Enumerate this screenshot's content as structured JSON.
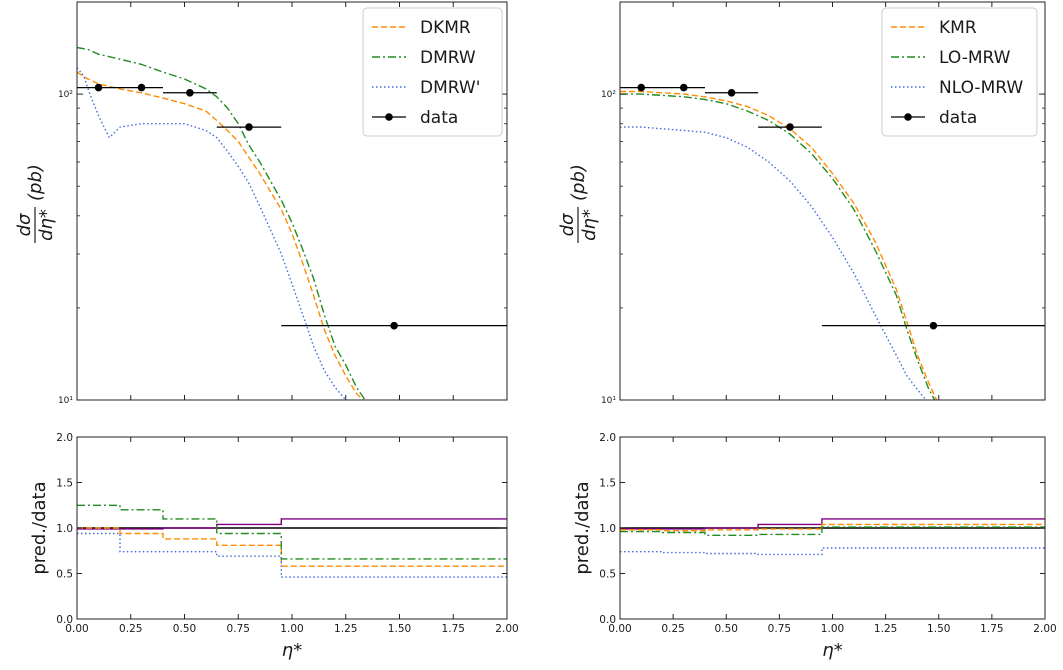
{
  "chart_data": [
    {
      "type": "line",
      "panel": "top-left",
      "xlabel": "η*",
      "ylabel_parts": {
        "numerator": "dσ",
        "denominator": "dη*",
        "unit": "(pb)"
      },
      "xlim": [
        0,
        2
      ],
      "ylim": [
        10,
        200
      ],
      "yscale": "log",
      "yticks": [
        10,
        100
      ],
      "ytick_labels": [
        "10¹",
        "10²"
      ],
      "grid": false,
      "legend_position": "top-right",
      "series": [
        {
          "name": "DKMR",
          "color": "#ff8c00",
          "style": "dashed",
          "x": [
            0.0,
            0.05,
            0.1,
            0.2,
            0.3,
            0.4,
            0.5,
            0.6,
            0.65,
            0.7,
            0.75,
            0.8,
            0.85,
            0.9,
            0.95,
            1.0,
            1.05,
            1.1,
            1.15,
            1.2,
            1.25,
            1.3,
            1.33
          ],
          "y": [
            118,
            112,
            108,
            104,
            101,
            97,
            93,
            88,
            82,
            76,
            70,
            62,
            55,
            48,
            42,
            35,
            28,
            22,
            17,
            14,
            12,
            10.5,
            10
          ]
        },
        {
          "name": "DMRW",
          "color": "#228b22",
          "style": "dashdot",
          "x": [
            0.0,
            0.05,
            0.1,
            0.2,
            0.3,
            0.4,
            0.5,
            0.6,
            0.65,
            0.7,
            0.75,
            0.8,
            0.85,
            0.9,
            0.95,
            1.0,
            1.05,
            1.1,
            1.15,
            1.2,
            1.25,
            1.3,
            1.34
          ],
          "y": [
            142,
            140,
            135,
            130,
            125,
            118,
            112,
            104,
            98,
            90,
            80,
            68,
            60,
            52,
            45,
            38,
            31,
            25,
            19,
            15,
            13,
            11,
            10
          ]
        },
        {
          "name": "DMRW'",
          "color": "#4169e1",
          "style": "dotted",
          "x": [
            0.0,
            0.03,
            0.06,
            0.1,
            0.15,
            0.2,
            0.3,
            0.4,
            0.5,
            0.6,
            0.65,
            0.7,
            0.75,
            0.8,
            0.85,
            0.9,
            0.95,
            1.0,
            1.05,
            1.1,
            1.15,
            1.2,
            1.25
          ],
          "y": [
            122,
            115,
            100,
            85,
            72,
            78,
            80,
            80,
            80,
            76,
            72,
            65,
            58,
            51,
            43,
            36,
            30,
            24,
            19,
            15,
            12.5,
            11,
            10
          ]
        }
      ],
      "data_points": {
        "name": "data",
        "x": [
          0.1,
          0.3,
          0.525,
          0.8,
          1.475
        ],
        "y": [
          105,
          105,
          101,
          78,
          17.5
        ],
        "xerr_low": [
          0.1,
          0.1,
          0.125,
          0.15,
          0.525
        ],
        "xerr_high": [
          0.1,
          0.1,
          0.125,
          0.15,
          0.525
        ]
      }
    },
    {
      "type": "line",
      "panel": "top-right",
      "xlabel": "η*",
      "ylabel_parts": {
        "numerator": "dσ",
        "denominator": "dη*",
        "unit": "(pb)"
      },
      "xlim": [
        0,
        2
      ],
      "ylim": [
        10,
        200
      ],
      "yscale": "log",
      "yticks": [
        10,
        100
      ],
      "ytick_labels": [
        "10¹",
        "10²"
      ],
      "grid": false,
      "legend_position": "top-right",
      "series": [
        {
          "name": "KMR",
          "color": "#ff8c00",
          "style": "dashed",
          "x": [
            0.0,
            0.1,
            0.2,
            0.3,
            0.4,
            0.5,
            0.6,
            0.7,
            0.8,
            0.9,
            1.0,
            1.1,
            1.2,
            1.3,
            1.35,
            1.4,
            1.45,
            1.49
          ],
          "y": [
            102,
            102,
            101,
            100,
            98,
            95,
            91,
            85,
            77,
            67,
            55,
            44,
            33,
            23,
            18,
            14,
            11.5,
            10
          ]
        },
        {
          "name": "LO-MRW",
          "color": "#228b22",
          "style": "dashdot",
          "x": [
            0.0,
            0.1,
            0.2,
            0.3,
            0.4,
            0.5,
            0.6,
            0.7,
            0.8,
            0.9,
            1.0,
            1.1,
            1.2,
            1.3,
            1.35,
            1.4,
            1.45,
            1.48
          ],
          "y": [
            100,
            100,
            99,
            98,
            96,
            93,
            88,
            82,
            74,
            64,
            53,
            42,
            31,
            22,
            17,
            13.5,
            11,
            10
          ]
        },
        {
          "name": "NLO-MRW",
          "color": "#4169e1",
          "style": "dotted",
          "x": [
            0.0,
            0.1,
            0.2,
            0.3,
            0.4,
            0.5,
            0.6,
            0.7,
            0.8,
            0.9,
            1.0,
            1.1,
            1.2,
            1.3,
            1.35,
            1.4,
            1.44
          ],
          "y": [
            78,
            78,
            77,
            76,
            75,
            72,
            67,
            60,
            52,
            43,
            34,
            26,
            19,
            14,
            12,
            10.8,
            10
          ]
        }
      ],
      "data_points": {
        "name": "data",
        "x": [
          0.1,
          0.3,
          0.525,
          0.8,
          1.475
        ],
        "y": [
          105,
          105,
          101,
          78,
          17.5
        ],
        "xerr_low": [
          0.1,
          0.1,
          0.125,
          0.15,
          0.525
        ],
        "xerr_high": [
          0.1,
          0.1,
          0.125,
          0.15,
          0.525
        ]
      }
    },
    {
      "type": "line",
      "panel": "bottom-left",
      "xlabel": "η*",
      "ylabel": "pred./data",
      "xlim": [
        0,
        2
      ],
      "ylim": [
        0,
        2
      ],
      "xticks": [
        0,
        0.25,
        0.5,
        0.75,
        1.0,
        1.25,
        1.5,
        1.75,
        2.0
      ],
      "xtick_labels": [
        "0.00",
        "0.25",
        "0.50",
        "0.75",
        "1.00",
        "1.25",
        "1.50",
        "1.75",
        "2.00"
      ],
      "yticks": [
        0,
        0.5,
        1.0,
        1.5,
        2.0
      ],
      "ytick_labels": [
        "0.0",
        "0.5",
        "1.0",
        "1.5",
        "2.0"
      ],
      "grid": false,
      "bin_edges": [
        0,
        0.2,
        0.4,
        0.65,
        0.95,
        2.0
      ],
      "series": [
        {
          "color": "#000000",
          "style": "solid",
          "values": [
            1.0,
            1.0,
            1.0,
            1.0,
            1.0
          ]
        },
        {
          "color": "#800080",
          "style": "solid",
          "values": [
            0.99,
            0.99,
            1.0,
            1.04,
            1.1
          ]
        },
        {
          "color": "#ff8c00",
          "style": "dashed",
          "values": [
            1.0,
            0.94,
            0.88,
            0.81,
            0.58
          ]
        },
        {
          "color": "#228b22",
          "style": "dashdot",
          "values": [
            1.25,
            1.2,
            1.1,
            0.94,
            0.66
          ]
        },
        {
          "color": "#4169e1",
          "style": "dotted",
          "values": [
            0.94,
            0.74,
            0.74,
            0.69,
            0.46
          ]
        }
      ]
    },
    {
      "type": "line",
      "panel": "bottom-right",
      "xlabel": "η*",
      "ylabel": "pred./data",
      "xlim": [
        0,
        2
      ],
      "ylim": [
        0,
        2
      ],
      "xticks": [
        0,
        0.25,
        0.5,
        0.75,
        1.0,
        1.25,
        1.5,
        1.75,
        2.0
      ],
      "xtick_labels": [
        "0.00",
        "0.25",
        "0.50",
        "0.75",
        "1.00",
        "1.25",
        "1.50",
        "1.75",
        "2.00"
      ],
      "yticks": [
        0,
        0.5,
        1.0,
        1.5,
        2.0
      ],
      "ytick_labels": [
        "0.0",
        "0.5",
        "1.0",
        "1.5",
        "2.0"
      ],
      "grid": false,
      "bin_edges": [
        0,
        0.2,
        0.4,
        0.65,
        0.95,
        2.0
      ],
      "series": [
        {
          "color": "#000000",
          "style": "solid",
          "values": [
            1.0,
            1.0,
            1.0,
            1.0,
            1.0
          ]
        },
        {
          "color": "#800080",
          "style": "solid",
          "values": [
            0.99,
            0.99,
            1.0,
            1.04,
            1.1
          ]
        },
        {
          "color": "#ff8c00",
          "style": "dashed",
          "values": [
            0.98,
            0.97,
            0.98,
            0.99,
            1.04
          ]
        },
        {
          "color": "#228b22",
          "style": "dashdot",
          "values": [
            0.96,
            0.95,
            0.92,
            0.93,
            1.01
          ]
        },
        {
          "color": "#4169e1",
          "style": "dotted",
          "values": [
            0.74,
            0.73,
            0.72,
            0.71,
            0.78
          ]
        }
      ]
    }
  ]
}
